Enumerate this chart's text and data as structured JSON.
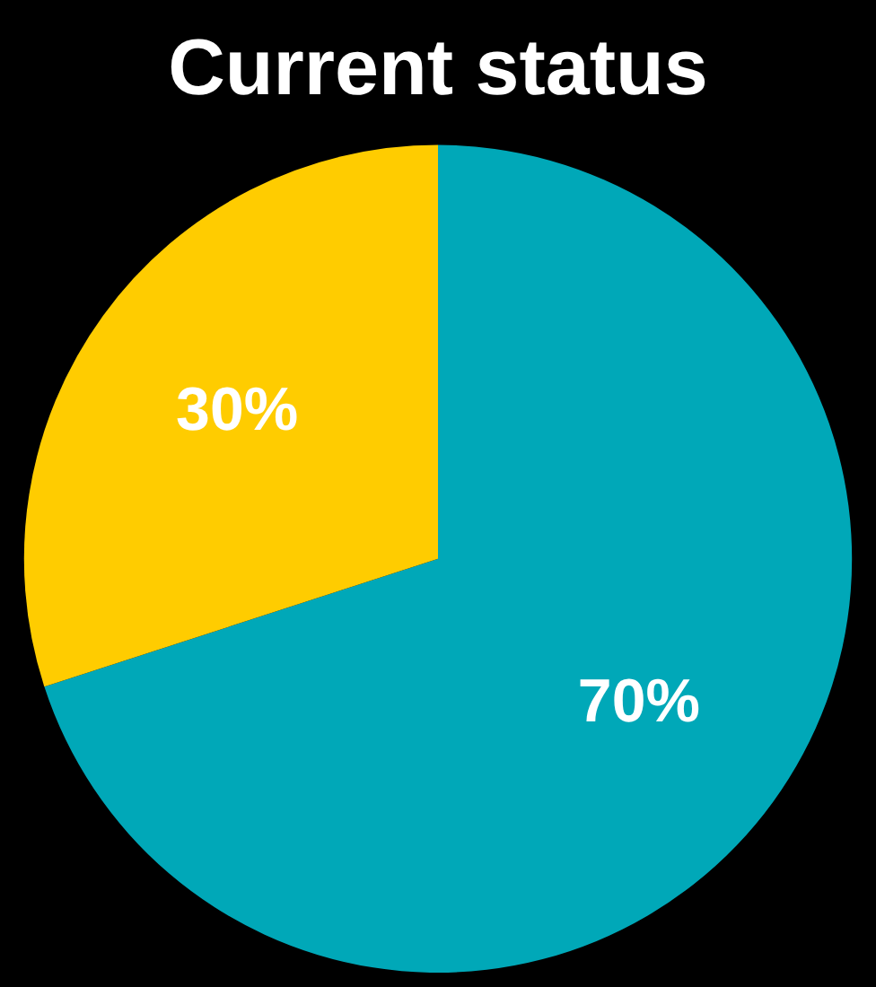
{
  "chart_data": {
    "type": "pie",
    "title": "Current status",
    "categories": [
      null,
      null
    ],
    "values": [
      70,
      30
    ],
    "colors": [
      "#00a8b8",
      "#ffcc00"
    ],
    "value_labels": [
      "70%",
      "30%"
    ],
    "legend": false
  }
}
